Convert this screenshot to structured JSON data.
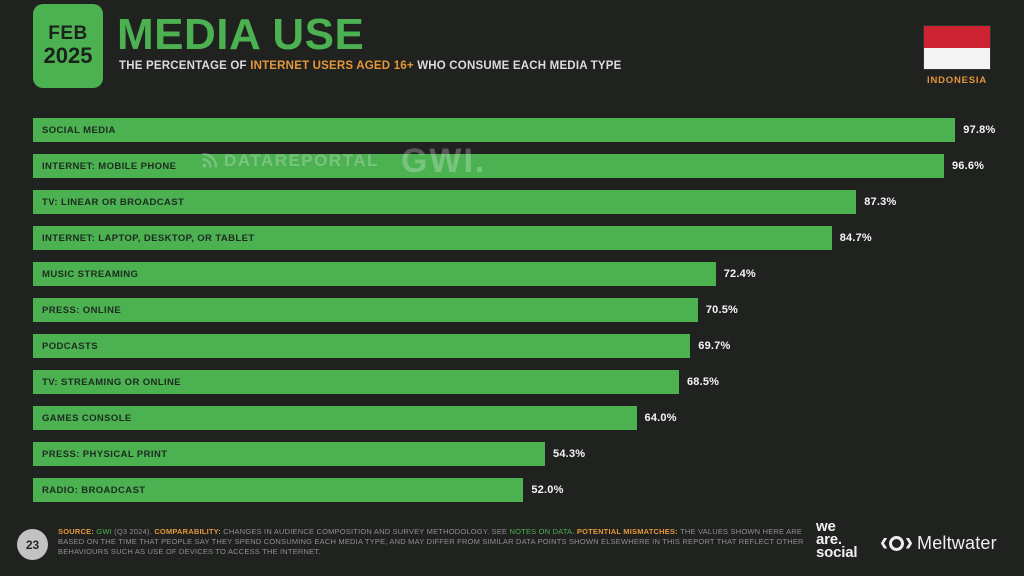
{
  "header": {
    "date_badge": {
      "month": "FEB",
      "year": "2025"
    },
    "title": "MEDIA USE",
    "subtitle": {
      "prefix": "THE PERCENTAGE OF ",
      "highlight": "INTERNET USERS AGED 16+",
      "suffix": " WHO CONSUME EACH MEDIA TYPE"
    },
    "country": {
      "name": "INDONESIA",
      "flag_top_color": "#ce2333",
      "flag_bottom_color": "#f4f4f4"
    }
  },
  "watermarks": {
    "datareportal": "DATAREPORTAL",
    "gwi": "GWI."
  },
  "chart_data": {
    "type": "bar",
    "orientation": "horizontal",
    "title": "MEDIA USE",
    "subtitle": "THE PERCENTAGE OF INTERNET USERS AGED 16+ WHO CONSUME EACH MEDIA TYPE",
    "unit": "%",
    "xlim": [
      0,
      100
    ],
    "grid": false,
    "legend": false,
    "bar_color": "#4cb151",
    "categories": [
      "SOCIAL MEDIA",
      "INTERNET: MOBILE PHONE",
      "TV: LINEAR OR BROADCAST",
      "INTERNET: LAPTOP, DESKTOP, OR TABLET",
      "MUSIC STREAMING",
      "PRESS: ONLINE",
      "PODCASTS",
      "TV: STREAMING OR ONLINE",
      "GAMES CONSOLE",
      "PRESS: PHYSICAL PRINT",
      "RADIO: BROADCAST"
    ],
    "values": [
      97.8,
      96.6,
      87.3,
      84.7,
      72.4,
      70.5,
      69.7,
      68.5,
      64.0,
      54.3,
      52.0
    ],
    "value_labels": [
      "97.8%",
      "96.6%",
      "87.3%",
      "84.7%",
      "72.4%",
      "70.5%",
      "69.7%",
      "68.5%",
      "64.0%",
      "54.3%",
      "52.0%"
    ]
  },
  "footer": {
    "page_number": "23",
    "source": {
      "segments": [
        {
          "style": "orange",
          "text": "SOURCE: "
        },
        {
          "style": "green",
          "text": "GWI"
        },
        {
          "style": "gray",
          "text": " (Q3 2024). "
        },
        {
          "style": "orange",
          "text": "COMPARABILITY: "
        },
        {
          "style": "gray",
          "text": "CHANGES IN AUDIENCE COMPOSITION AND SURVEY METHODOLOGY. SEE "
        },
        {
          "style": "green",
          "text": "NOTES ON DATA"
        },
        {
          "style": "gray",
          "text": ". "
        },
        {
          "style": "orange",
          "text": "POTENTIAL MISMATCHES: "
        },
        {
          "style": "gray",
          "text": "THE VALUES SHOWN HERE ARE BASED ON THE TIME THAT PEOPLE SAY THEY SPEND CONSUMING EACH MEDIA TYPE, AND MAY DIFFER FROM SIMILAR DATA POINTS SHOWN ELSEWHERE IN THIS REPORT THAT REFLECT OTHER BEHAVIOURS SUCH AS USE OF DEVICES TO ACCESS THE INTERNET."
        }
      ]
    },
    "logos": {
      "we_are_social": [
        "we",
        "are.",
        "social"
      ],
      "meltwater": "Meltwater"
    }
  },
  "colors": {
    "background": "#202220",
    "accent_green": "#4cb151",
    "accent_orange": "#e5973a",
    "bar_label_dark": "#1d2b1f",
    "value_label_white": "#f5f5f5",
    "footer_gray": "#8f8f8f"
  }
}
